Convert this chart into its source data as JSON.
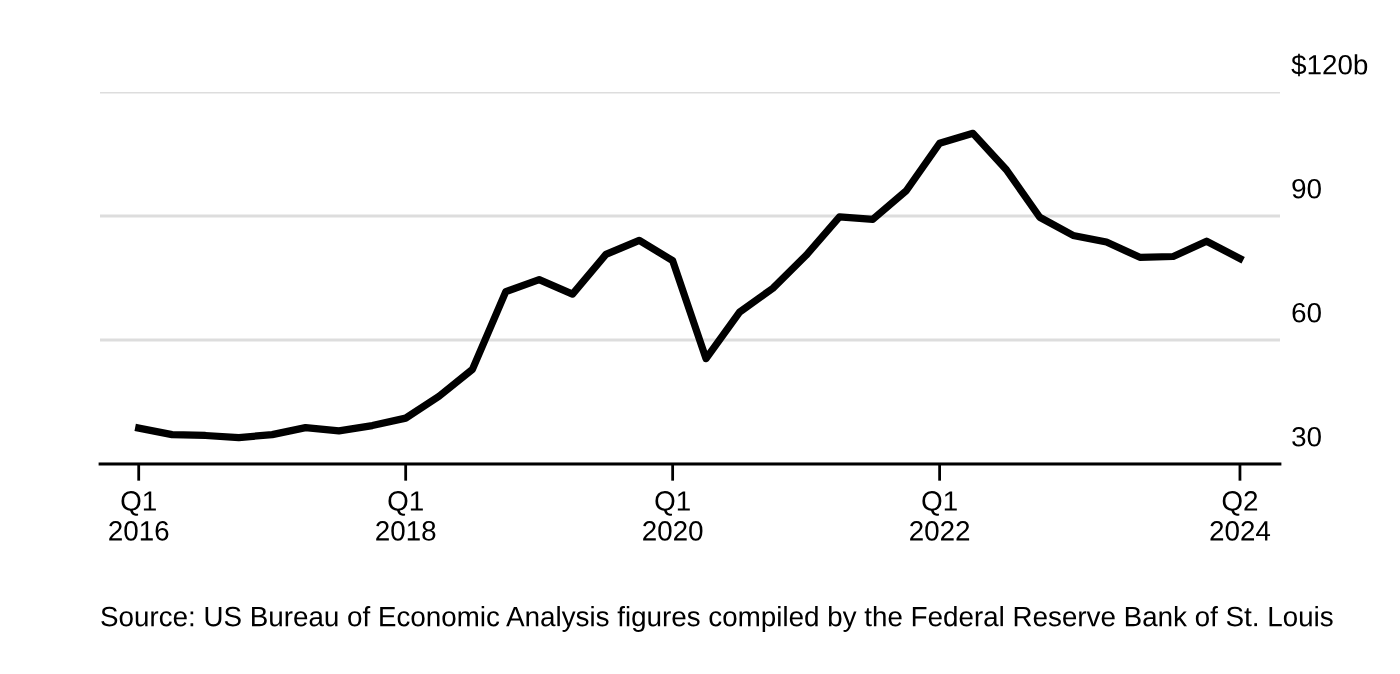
{
  "chart_data": {
    "type": "line",
    "categories": [
      "Q1\n2016",
      null,
      null,
      null,
      null,
      null,
      null,
      null,
      "Q1\n2018",
      null,
      null,
      null,
      null,
      null,
      null,
      null,
      "Q1\n2020",
      null,
      null,
      null,
      null,
      null,
      null,
      null,
      "Q1\n2022",
      null,
      null,
      null,
      null,
      null,
      null,
      null,
      null,
      "Q2\n2024"
    ],
    "series": [
      {
        "color": "#000000",
        "values": [
          38.7,
          37.1,
          36.9,
          36.4,
          37.1,
          38.8,
          38.0,
          39.3,
          41.1,
          46.4,
          52.9,
          71.7,
          74.6,
          71.1,
          80.7,
          84.1,
          79.2,
          55.5,
          66.7,
          72.5,
          80.5,
          89.8,
          89.2,
          96.1,
          107.6,
          110.0,
          101.2,
          89.7,
          85.3,
          83.7,
          80.0,
          80.2,
          83.9,
          79.7
        ]
      }
    ],
    "ylim": [
      30,
      120
    ],
    "yticks": [
      30,
      60,
      90,
      {
        "value": 120,
        "label": "$120b"
      }
    ],
    "grid": "y",
    "legend": false,
    "marker": "none",
    "line_style": "solid",
    "annotations": [
      "Source: US Bureau of Economic Analysis figures compiled by the Federal Reserve Bank of St. Louis"
    ]
  }
}
